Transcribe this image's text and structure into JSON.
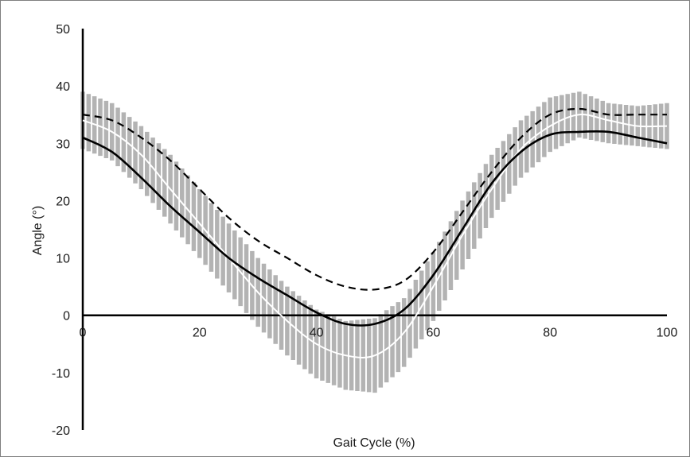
{
  "chart_data": {
    "type": "line",
    "title": "",
    "xlabel": "Gait Cycle (%)",
    "ylabel": "Angle (°)",
    "xlim": [
      0,
      100
    ],
    "ylim": [
      -20,
      50
    ],
    "x_ticks": [
      0,
      20,
      40,
      60,
      80,
      100
    ],
    "y_ticks": [
      -20,
      -10,
      0,
      10,
      20,
      30,
      40,
      50
    ],
    "grid": false,
    "legend": "none",
    "x": [
      0,
      5,
      10,
      15,
      20,
      25,
      30,
      35,
      40,
      45,
      50,
      55,
      60,
      65,
      70,
      75,
      80,
      85,
      90,
      95,
      100
    ],
    "series": [
      {
        "style": "solid-black",
        "color": "#000000",
        "values": [
          31,
          28.5,
          24,
          19,
          14.5,
          10,
          6.5,
          3.5,
          0.5,
          -1.5,
          -1.5,
          1,
          7,
          15,
          23,
          28.5,
          31.5,
          32,
          32,
          31,
          30
        ]
      },
      {
        "style": "dashed-black",
        "color": "#000000",
        "values": [
          35,
          34,
          31,
          27,
          22,
          17,
          13,
          10,
          7,
          5,
          4.5,
          6,
          11,
          18,
          25,
          31,
          35,
          36,
          35,
          35,
          35
        ]
      },
      {
        "style": "white-mean",
        "color": "#ffffff",
        "values": [
          34,
          32,
          28,
          22,
          16,
          10,
          4,
          -1,
          -5,
          -7,
          -7,
          -3,
          5,
          14,
          22,
          29,
          33,
          35,
          34,
          33,
          33
        ]
      },
      {
        "style": "gray-sd-band",
        "color": "#b3b3b3",
        "lower": [
          29,
          27,
          22,
          16,
          10,
          4,
          -2,
          -7,
          -11,
          -13,
          -13.5,
          -9,
          -1,
          8,
          17,
          24,
          28.5,
          31,
          30,
          29.5,
          29
        ],
        "upper": [
          39,
          37,
          33,
          28,
          22,
          16,
          10,
          5,
          1,
          -1,
          -0.5,
          3,
          11,
          20,
          28,
          34,
          38,
          39,
          37,
          36.5,
          37
        ]
      }
    ]
  }
}
